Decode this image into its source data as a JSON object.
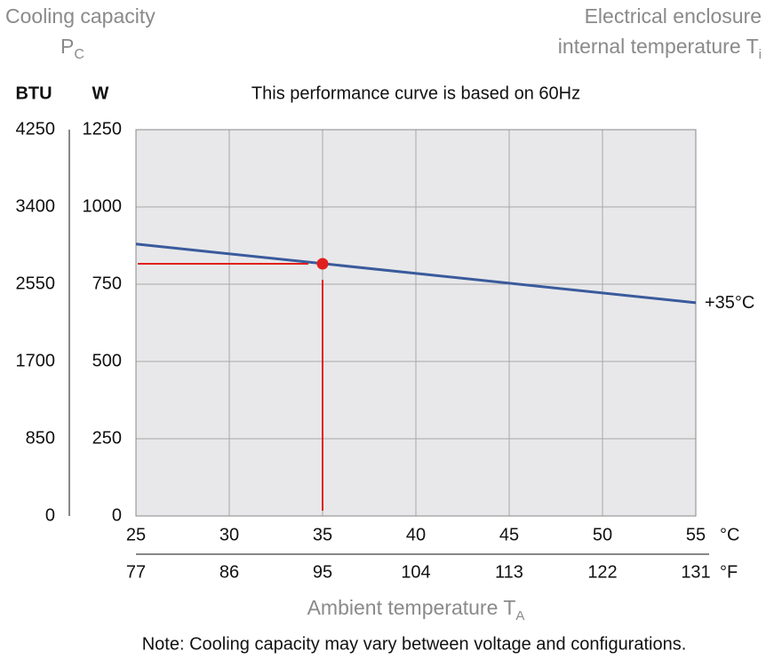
{
  "chart_data": {
    "type": "line",
    "y_title": "Cooling capacity",
    "y_symbol": "P",
    "y_symbol_sub": "C",
    "right_title": "Electrical enclosure",
    "right_title_line2": "internal temperature T",
    "right_title_sub": "i",
    "subtitle": "This performance curve is based on 60Hz",
    "x_title": "Ambient temperature T",
    "x_title_sub": "A",
    "y_unit": "W",
    "y2_unit": "BTU",
    "x_unit": "°C",
    "x2_unit": "°F",
    "note": "Note: Cooling capacity may vary between voltage and configurations.",
    "xlim": [
      25,
      55
    ],
    "xticks": [
      25,
      30,
      35,
      40,
      45,
      50,
      55
    ],
    "x2lim": [
      77,
      131
    ],
    "x2ticks": [
      77,
      86,
      95,
      104,
      113,
      122,
      131
    ],
    "ylim": [
      0,
      1250
    ],
    "yticks": [
      0,
      250,
      500,
      750,
      1000,
      1250
    ],
    "y2lim": [
      0,
      4250
    ],
    "y2ticks": [
      0,
      850,
      1700,
      2550,
      3400,
      4250
    ],
    "grid": true,
    "plot_background": "#e8e8ea",
    "series": [
      {
        "name": "+35°C",
        "color": "#3a5a9c",
        "x": [
          25,
          55
        ],
        "values": [
          880,
          690
        ]
      }
    ],
    "highlight": {
      "x": 35,
      "value": 816,
      "color": "#e0201e"
    }
  }
}
